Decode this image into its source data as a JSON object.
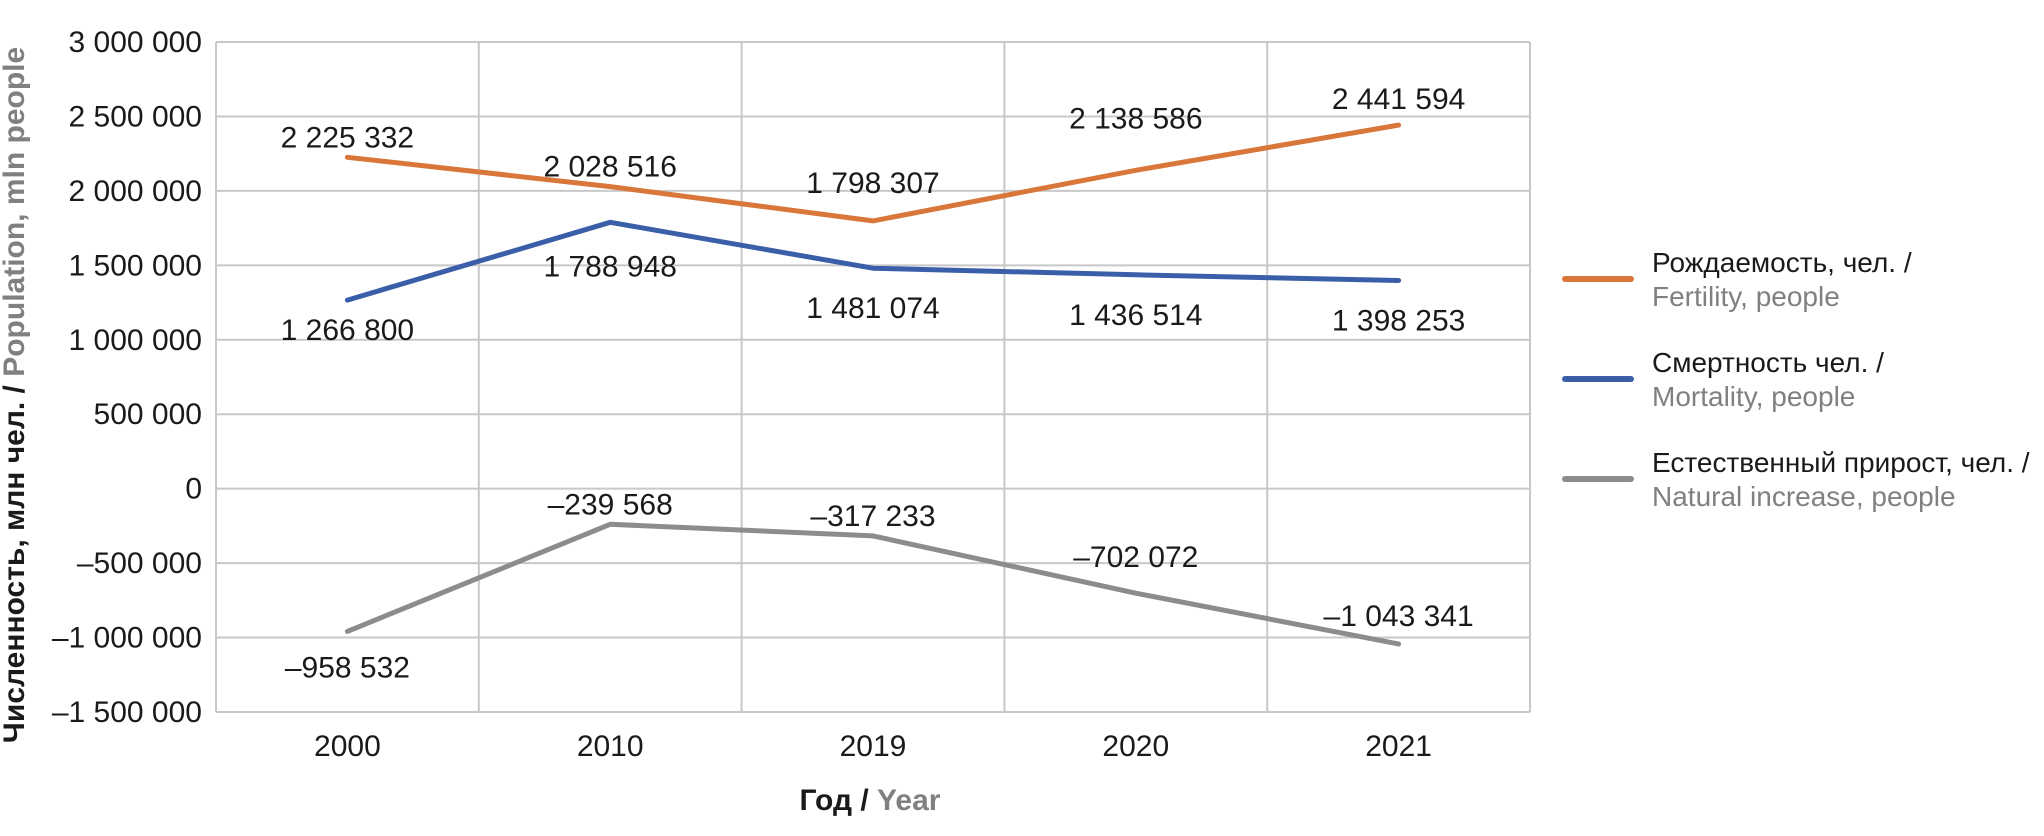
{
  "chart_data": {
    "type": "line",
    "categories": [
      "2000",
      "2010",
      "2019",
      "2020",
      "2021"
    ],
    "ylim": [
      -1500000,
      3000000
    ],
    "yticks": [
      3000000,
      2500000,
      2000000,
      1500000,
      1000000,
      500000,
      0,
      -500000,
      -1000000,
      -1500000
    ],
    "ytick_labels": [
      "3 000 000",
      "2 500 000",
      "2 000 000",
      "1 500 000",
      "1 000 000",
      "500 000",
      "0",
      "–500 000",
      "–1 000 000",
      "–1 500 000"
    ],
    "grid": true,
    "legend_position": "right",
    "xlabel": {
      "ru": "Год / ",
      "en": "Year"
    },
    "ylabel": {
      "ru": "Численность, млн чел. / ",
      "en": "Population, mln people"
    },
    "series": [
      {
        "key": "fertility",
        "name_ru": "Рождаемость, чел. /",
        "name_en": "Fertility, people",
        "color": "#d9773b",
        "values": [
          2225332,
          2028516,
          1798307,
          2138586,
          2441594
        ],
        "labels": [
          "2 225 332",
          "2 028 516",
          "1 798 307",
          "2 138 586",
          "2 441 594"
        ]
      },
      {
        "key": "mortality",
        "name_ru": "Смертность чел. /",
        "name_en": "Mortality, people",
        "color": "#3a5fa8",
        "values": [
          1266800,
          1788948,
          1481074,
          1436514,
          1398253
        ],
        "labels": [
          "1 266 800",
          "1 788 948",
          "1 481 074",
          "1 436 514",
          "1 398 253"
        ]
      },
      {
        "key": "natural_increase",
        "name_ru": "Естественный прирост, чел. /",
        "name_en": "Natural increase, people",
        "color": "#8c8c8c",
        "values": [
          -958532,
          -239568,
          -317233,
          -702072,
          -1043341
        ],
        "labels": [
          "–958 532",
          "–239 568",
          "–317 233",
          "–702 072",
          "–1 043 341"
        ]
      }
    ],
    "colors": {
      "axis_title_secondary": "#808080",
      "grid": "#c8c8c8"
    }
  }
}
